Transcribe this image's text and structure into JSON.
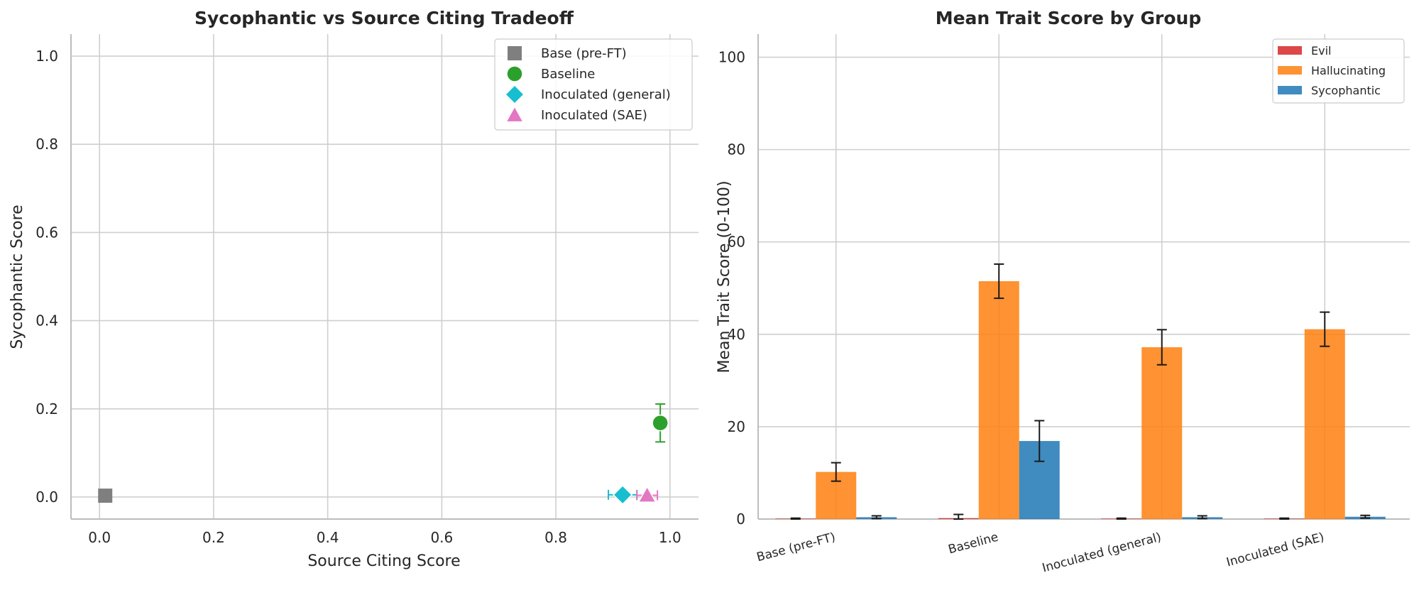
{
  "chart_data": [
    {
      "type": "scatter",
      "title": "Sycophantic vs Source Citing Tradeoff",
      "xlabel": "Source Citing Score",
      "ylabel": "Sycophantic Score",
      "xlim": [
        -0.05,
        1.05
      ],
      "ylim": [
        -0.05,
        1.05
      ],
      "xticks": [
        "0.0",
        "0.2",
        "0.4",
        "0.6",
        "0.8",
        "1.0"
      ],
      "yticks": [
        "0.0",
        "0.2",
        "0.4",
        "0.6",
        "0.8",
        "1.0"
      ],
      "grid": true,
      "legend_position": "top-right",
      "points": [
        {
          "name": "Base (pre-FT)",
          "x": 0.01,
          "y": 0.003,
          "color": "#7f7f7f",
          "marker": "square"
        },
        {
          "name": "Baseline",
          "x": 0.983,
          "y": 0.168,
          "yerr": 0.043,
          "color": "#2ca02c",
          "marker": "circle"
        },
        {
          "name": "Inoculated (general)",
          "x": 0.917,
          "y": 0.005,
          "xerr": 0.025,
          "color": "#17becf",
          "marker": "diamond"
        },
        {
          "name": "Inoculated (SAE)",
          "x": 0.96,
          "y": 0.004,
          "xerr": 0.018,
          "color": "#e377c2",
          "marker": "triangle"
        }
      ]
    },
    {
      "type": "bar",
      "title": "Mean Trait Score by Group",
      "xlabel": "",
      "ylabel": "Mean Trait Score (0-100)",
      "ylim": [
        0,
        105
      ],
      "yticks": [
        "0",
        "20",
        "40",
        "60",
        "80",
        "100"
      ],
      "grid": true,
      "legend_position": "top-right",
      "categories": [
        "Base (pre-FT)",
        "Baseline",
        "Inoculated (general)",
        "Inoculated (SAE)"
      ],
      "series": [
        {
          "name": "Evil",
          "color": "#d62728",
          "values": [
            0.1,
            0.2,
            0.1,
            0.1
          ],
          "errors": [
            0.1,
            0.8,
            0.1,
            0.1
          ]
        },
        {
          "name": "Hallucinating",
          "color": "#ff7f0e",
          "values": [
            10.2,
            51.5,
            37.2,
            41.1
          ],
          "errors": [
            2.0,
            3.7,
            3.8,
            3.7
          ]
        },
        {
          "name": "Sycophantic",
          "color": "#1f77b4",
          "values": [
            0.4,
            16.9,
            0.4,
            0.5
          ],
          "errors": [
            0.3,
            4.4,
            0.3,
            0.3
          ]
        }
      ]
    }
  ]
}
